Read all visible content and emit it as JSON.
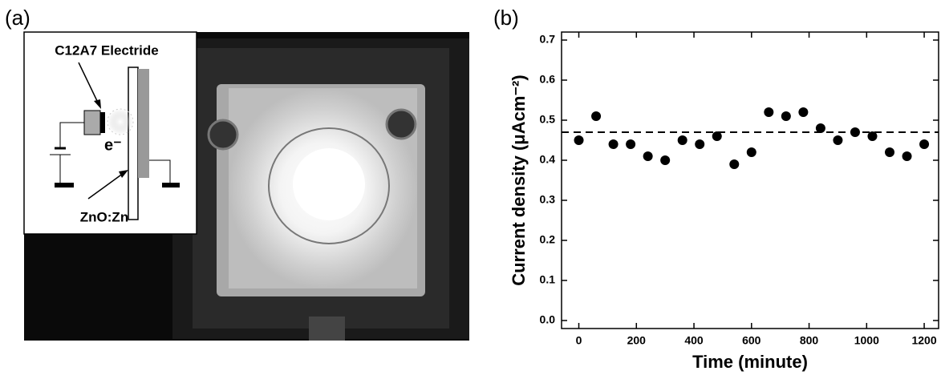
{
  "panel_a": {
    "label": "(a)",
    "inset_labels": [
      "C12A7 Electride",
      "e⁻",
      "ZnO:Zn"
    ]
  },
  "chart_data": {
    "type": "scatter",
    "panel_label": "(b)",
    "x_label": "Time (minute)",
    "y_label": "Current density (μAcm⁻²)",
    "x": [
      0,
      60,
      120,
      180,
      240,
      300,
      360,
      420,
      480,
      540,
      600,
      660,
      720,
      780,
      840,
      900,
      960,
      1020,
      1080,
      1140,
      1200
    ],
    "values": [
      0.45,
      0.51,
      0.44,
      0.44,
      0.41,
      0.4,
      0.45,
      0.44,
      0.46,
      0.39,
      0.42,
      0.52,
      0.51,
      0.52,
      0.48,
      0.45,
      0.47,
      0.46,
      0.42,
      0.41,
      0.44
    ],
    "color": "#000000",
    "reference_line": 0.47,
    "xlim": [
      -60,
      1250
    ],
    "xticks": [
      0,
      200,
      400,
      600,
      800,
      1000,
      1200
    ],
    "ylim": [
      -0.02,
      0.72
    ],
    "yticks": [
      {
        "value": 0,
        "label": "0.0"
      },
      0.1,
      0.2,
      0.3,
      0.4,
      0.5,
      0.6,
      0.7
    ]
  }
}
